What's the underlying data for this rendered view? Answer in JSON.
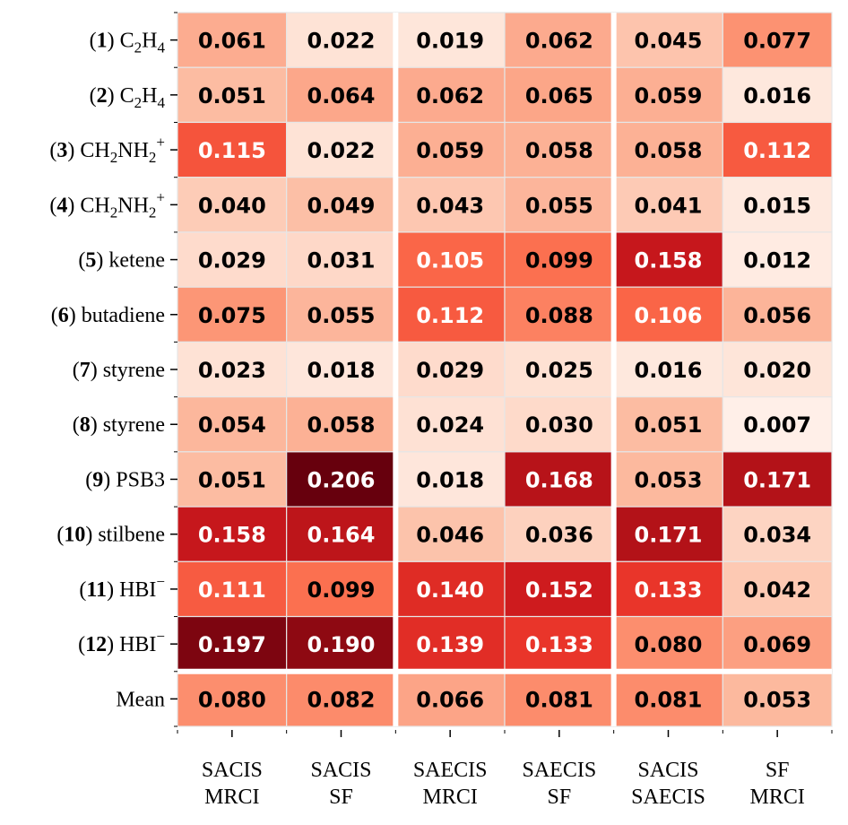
{
  "chart_data": {
    "type": "heatmap",
    "colormap": "Reds",
    "value_range": [
      0,
      0.206
    ],
    "rows": [
      {
        "num": "1",
        "name": "C",
        "sub1": "2",
        "name2": "H",
        "sub2": "4",
        "sup": "",
        "plain": ""
      },
      {
        "num": "2",
        "name": "C",
        "sub1": "2",
        "name2": "H",
        "sub2": "4",
        "sup": "",
        "plain": ""
      },
      {
        "num": "3",
        "name": "CH",
        "sub1": "2",
        "name2": "NH",
        "sub2": "2",
        "sup": "+",
        "plain": ""
      },
      {
        "num": "4",
        "name": "CH",
        "sub1": "2",
        "name2": "NH",
        "sub2": "2",
        "sup": "+",
        "plain": ""
      },
      {
        "num": "5",
        "name": "",
        "sub1": "",
        "name2": "",
        "sub2": "",
        "sup": "",
        "plain": "ketene"
      },
      {
        "num": "6",
        "name": "",
        "sub1": "",
        "name2": "",
        "sub2": "",
        "sup": "",
        "plain": "butadiene"
      },
      {
        "num": "7",
        "name": "",
        "sub1": "",
        "name2": "",
        "sub2": "",
        "sup": "",
        "plain": "styrene"
      },
      {
        "num": "8",
        "name": "",
        "sub1": "",
        "name2": "",
        "sub2": "",
        "sup": "",
        "plain": "styrene"
      },
      {
        "num": "9",
        "name": "",
        "sub1": "",
        "name2": "",
        "sub2": "",
        "sup": "",
        "plain": "PSB3"
      },
      {
        "num": "10",
        "name": "",
        "sub1": "",
        "name2": "",
        "sub2": "",
        "sup": "",
        "plain": "stilbene"
      },
      {
        "num": "11",
        "name": "HBI",
        "sub1": "",
        "name2": "",
        "sub2": "",
        "sup": "−",
        "plain": ""
      },
      {
        "num": "12",
        "name": "HBI",
        "sub1": "",
        "name2": "",
        "sub2": "",
        "sup": "−",
        "plain": ""
      }
    ],
    "mean_label": "Mean",
    "columns": [
      {
        "line1": "SACIS",
        "line2": "MRCI"
      },
      {
        "line1": "SACIS",
        "line2": "SF"
      },
      {
        "line1": "SAECIS",
        "line2": "MRCI"
      },
      {
        "line1": "SAECIS",
        "line2": "SF"
      },
      {
        "line1": "SACIS",
        "line2": "SAECIS"
      },
      {
        "line1": "SF",
        "line2": "MRCI"
      }
    ],
    "values": [
      [
        0.061,
        0.022,
        0.019,
        0.062,
        0.045,
        0.077
      ],
      [
        0.051,
        0.064,
        0.062,
        0.065,
        0.059,
        0.016
      ],
      [
        0.115,
        0.022,
        0.059,
        0.058,
        0.058,
        0.112
      ],
      [
        0.04,
        0.049,
        0.043,
        0.055,
        0.041,
        0.015
      ],
      [
        0.029,
        0.031,
        0.105,
        0.099,
        0.158,
        0.012
      ],
      [
        0.075,
        0.055,
        0.112,
        0.088,
        0.106,
        0.056
      ],
      [
        0.023,
        0.018,
        0.029,
        0.025,
        0.016,
        0.02
      ],
      [
        0.054,
        0.058,
        0.024,
        0.03,
        0.051,
        0.007
      ],
      [
        0.051,
        0.206,
        0.018,
        0.168,
        0.053,
        0.171
      ],
      [
        0.158,
        0.164,
        0.046,
        0.036,
        0.171,
        0.034
      ],
      [
        0.111,
        0.099,
        0.14,
        0.152,
        0.133,
        0.042
      ],
      [
        0.197,
        0.19,
        0.139,
        0.133,
        0.08,
        0.069
      ]
    ],
    "mean_values": [
      0.08,
      0.082,
      0.066,
      0.081,
      0.081,
      0.053
    ]
  }
}
